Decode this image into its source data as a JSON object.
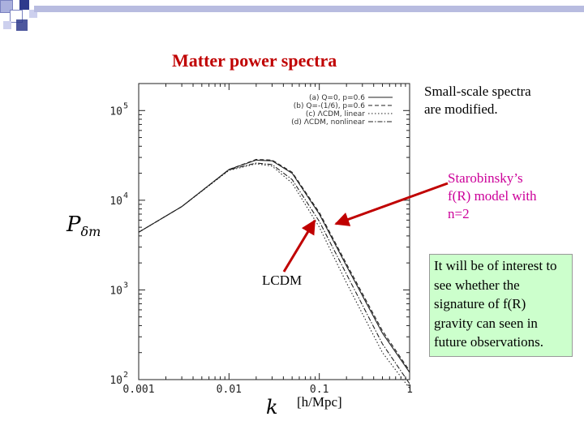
{
  "slide": {
    "title": "Matter power spectra",
    "note_modified": [
      "Small-scale spectra",
      "are modified."
    ],
    "note_model": [
      "Starobinsky’s",
      "f(R) model with",
      "n=2"
    ],
    "note_interest": "It will be of interest to see whether the signature of f(R) gravity can seen in future observations.",
    "lcdm_label": "LCDM",
    "k_symbol": "k",
    "k_units": "[h/Mpc]",
    "p_symbol": "P",
    "p_sub": "δm"
  },
  "chart_data": {
    "type": "line",
    "xscale": "log",
    "yscale": "log",
    "xlim": [
      0.001,
      1
    ],
    "ylim": [
      100,
      200000
    ],
    "x_ticks": [
      "0.001",
      "0.01",
      "0.1",
      "1"
    ],
    "y_ticks": [
      {
        "value": 100,
        "base": "10",
        "exp": "2"
      },
      {
        "value": 1000,
        "base": "10",
        "exp": "3"
      },
      {
        "value": 10000,
        "base": "10",
        "exp": "4"
      },
      {
        "value": 100000,
        "base": "10",
        "exp": "5"
      }
    ],
    "legend_position": "top-right",
    "series": [
      {
        "name": "(a) Q=0, p=0.6",
        "dash": "solid",
        "x": [
          0.001,
          0.003,
          0.01,
          0.02,
          0.03,
          0.05,
          0.1,
          0.2,
          0.5,
          1
        ],
        "y": [
          4400,
          8500,
          22000,
          28000,
          27500,
          20000,
          7000,
          1850,
          330,
          120
        ]
      },
      {
        "name": "(b) Q=-(1/6), p=0.6",
        "dash": "dashed",
        "x": [
          0.001,
          0.003,
          0.01,
          0.02,
          0.03,
          0.05,
          0.1,
          0.2,
          0.5,
          1
        ],
        "y": [
          4400,
          8500,
          22000,
          28500,
          28000,
          20500,
          7300,
          1950,
          350,
          125
        ]
      },
      {
        "name": "(c) ΛCDM, linear",
        "dash": "dotted",
        "x": [
          0.001,
          0.003,
          0.01,
          0.02,
          0.03,
          0.05,
          0.1,
          0.2,
          0.5,
          1
        ],
        "y": [
          4400,
          8500,
          21500,
          25500,
          24000,
          15500,
          5000,
          1200,
          200,
          80
        ]
      },
      {
        "name": "(d) ΛCDM, nonlinear",
        "dash": "dashdot",
        "x": [
          0.001,
          0.003,
          0.01,
          0.02,
          0.03,
          0.05,
          0.1,
          0.2,
          0.5,
          1
        ],
        "y": [
          4400,
          8500,
          21800,
          26000,
          25000,
          17000,
          5800,
          1500,
          250,
          90
        ]
      }
    ],
    "colors": {
      "title": "#c00000",
      "model_note": "#cc0099",
      "arrow": "#c00000",
      "interest_box": "#ccffcc",
      "deco_blue": "#2e3a8c"
    }
  }
}
